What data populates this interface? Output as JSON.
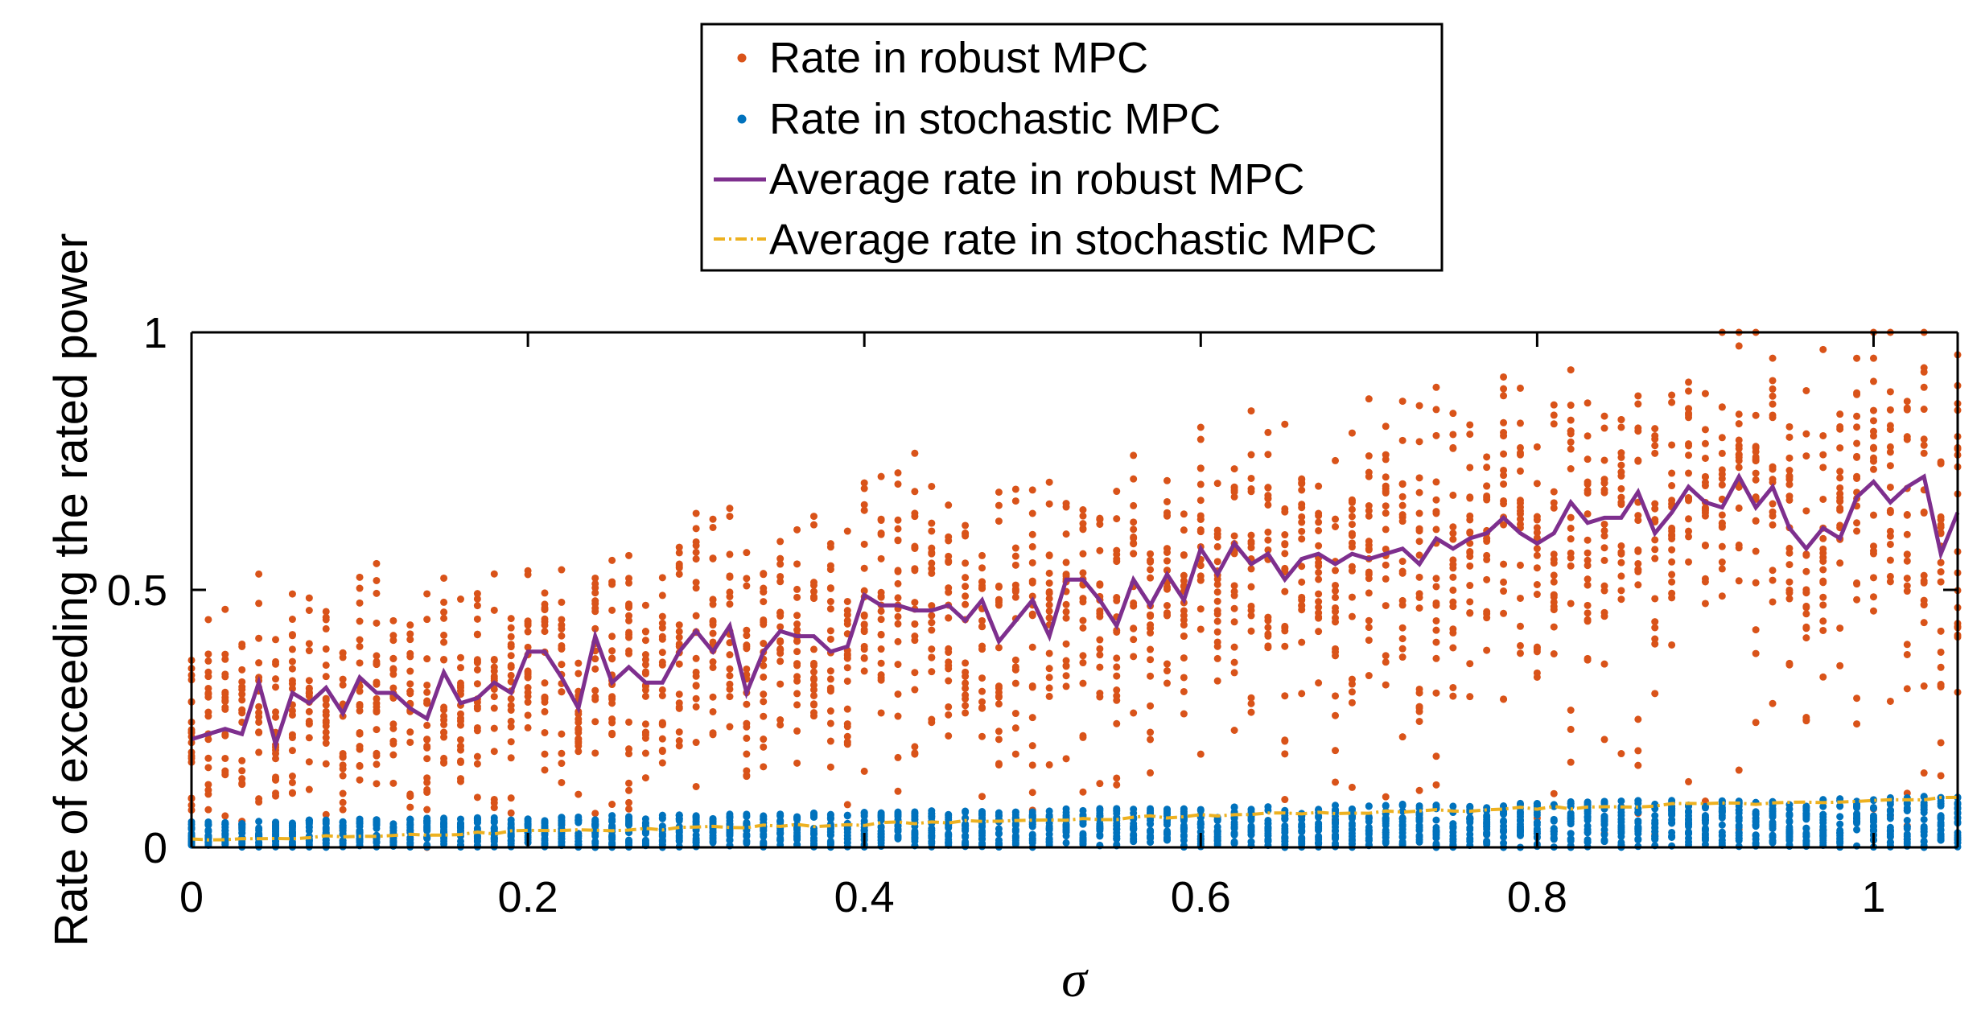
{
  "chart_data": {
    "type": "scatter",
    "title": "",
    "xlabel": "σ",
    "ylabel": "Rate of exceeding the rated power",
    "xlim": [
      0,
      1.05
    ],
    "ylim": [
      0,
      1
    ],
    "xticks": [
      0,
      0.2,
      0.4,
      0.6,
      0.8,
      1
    ],
    "xtick_labels": [
      "0",
      "0.2",
      "0.4",
      "0.6",
      "0.8",
      "1"
    ],
    "yticks": [
      0,
      0.5,
      1
    ],
    "ytick_labels": [
      "0",
      "0.5",
      "1"
    ],
    "grid": false,
    "legend_position": "top-center-outside",
    "colors": {
      "robust": "#D95319",
      "stochastic": "#0072BD",
      "robust_avg": "#7E2F8E",
      "stochastic_avg": "#EDB120",
      "axes": "#000000"
    },
    "series": [
      {
        "name": "Rate in robust MPC",
        "kind": "scatter",
        "color_key": "robust",
        "x_step": 0.01,
        "note": "~20 trials per sigma value, spread around the average",
        "spread": 0.36,
        "trials_per_sigma": 20
      },
      {
        "name": "Rate in stochastic MPC",
        "kind": "scatter",
        "color_key": "stochastic",
        "x_step": 0.01,
        "trials_per_sigma": 20
      },
      {
        "name": "Average rate in robust MPC",
        "kind": "line",
        "color_key": "robust_avg",
        "x": [
          0,
          0.01,
          0.02,
          0.03,
          0.04,
          0.05,
          0.06,
          0.07,
          0.08,
          0.09,
          0.1,
          0.11,
          0.12,
          0.13,
          0.14,
          0.15,
          0.16,
          0.17,
          0.18,
          0.19,
          0.2,
          0.21,
          0.22,
          0.23,
          0.24,
          0.25,
          0.26,
          0.27,
          0.28,
          0.29,
          0.3,
          0.31,
          0.32,
          0.33,
          0.34,
          0.35,
          0.36,
          0.37,
          0.38,
          0.39,
          0.4,
          0.41,
          0.42,
          0.43,
          0.44,
          0.45,
          0.46,
          0.47,
          0.48,
          0.49,
          0.5,
          0.51,
          0.52,
          0.53,
          0.54,
          0.55,
          0.56,
          0.57,
          0.58,
          0.59,
          0.6,
          0.61,
          0.62,
          0.63,
          0.64,
          0.65,
          0.66,
          0.67,
          0.68,
          0.69,
          0.7,
          0.71,
          0.72,
          0.73,
          0.74,
          0.75,
          0.76,
          0.77,
          0.78,
          0.79,
          0.8,
          0.81,
          0.82,
          0.83,
          0.84,
          0.85,
          0.86,
          0.87,
          0.88,
          0.89,
          0.9,
          0.91,
          0.92,
          0.93,
          0.94,
          0.95,
          0.96,
          0.97,
          0.98,
          0.99,
          1.0,
          1.01,
          1.02,
          1.03,
          1.04,
          1.05
        ],
        "values": [
          0.21,
          0.22,
          0.23,
          0.22,
          0.32,
          0.2,
          0.3,
          0.28,
          0.31,
          0.26,
          0.33,
          0.3,
          0.3,
          0.27,
          0.25,
          0.34,
          0.28,
          0.29,
          0.32,
          0.3,
          0.38,
          0.38,
          0.33,
          0.27,
          0.41,
          0.32,
          0.35,
          0.32,
          0.32,
          0.38,
          0.42,
          0.38,
          0.43,
          0.3,
          0.38,
          0.42,
          0.41,
          0.41,
          0.38,
          0.39,
          0.49,
          0.47,
          0.47,
          0.46,
          0.46,
          0.47,
          0.44,
          0.48,
          0.4,
          0.44,
          0.48,
          0.41,
          0.52,
          0.52,
          0.48,
          0.43,
          0.52,
          0.47,
          0.53,
          0.48,
          0.58,
          0.53,
          0.59,
          0.55,
          0.57,
          0.52,
          0.56,
          0.57,
          0.55,
          0.57,
          0.56,
          0.57,
          0.58,
          0.55,
          0.6,
          0.58,
          0.6,
          0.61,
          0.64,
          0.61,
          0.59,
          0.61,
          0.67,
          0.63,
          0.64,
          0.64,
          0.69,
          0.61,
          0.65,
          0.7,
          0.67,
          0.66,
          0.72,
          0.66,
          0.7,
          0.62,
          0.58,
          0.62,
          0.6,
          0.68,
          0.71,
          0.67,
          0.7,
          0.72,
          0.57,
          0.65
        ]
      },
      {
        "name": "Average rate in stochastic MPC",
        "kind": "line",
        "style": "dash-dot",
        "color_key": "stochastic_avg",
        "x_range": [
          0,
          1.05
        ],
        "start_value": 0.015,
        "end_value": 0.095
      }
    ],
    "legend": [
      "Rate in robust MPC",
      "Rate in stochastic MPC",
      "Average rate in robust MPC",
      "Average rate in stochastic MPC"
    ]
  }
}
